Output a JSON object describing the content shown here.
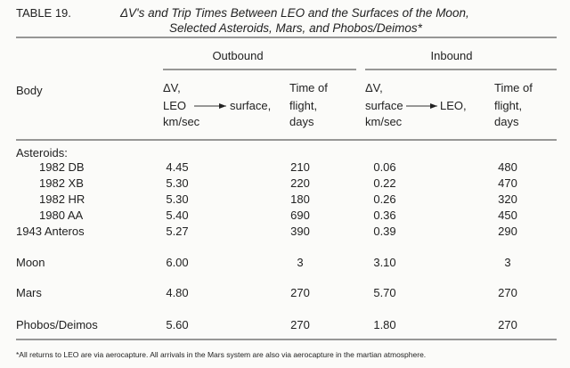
{
  "title": {
    "number": "TABLE 19.",
    "line1": "ΔV's and Trip Times Between LEO and the Surfaces of the Moon,",
    "line2": "Selected Asteroids, Mars, and Phobos/Deimos*"
  },
  "header": {
    "body": "Body",
    "outbound": {
      "label": "Outbound",
      "dv": [
        "ΔV,",
        "LEO",
        "km/sec"
      ],
      "dest": "surface,",
      "time": [
        "Time of",
        "flight,",
        "days"
      ]
    },
    "inbound": {
      "label": "Inbound",
      "dv": [
        "ΔV,",
        "surface",
        "km/sec"
      ],
      "dest": "LEO,",
      "time": [
        "Time of",
        "flight,",
        "days"
      ]
    }
  },
  "group": "Asteroids:",
  "rows": [
    [
      "1982 DB",
      "4.45",
      "210",
      "0.06",
      "480"
    ],
    [
      "1982 XB",
      "5.30",
      "220",
      "0.22",
      "470"
    ],
    [
      "1982 HR",
      "5.30",
      "180",
      "0.26",
      "320"
    ],
    [
      "1980 AA",
      "5.40",
      "690",
      "0.36",
      "450"
    ],
    [
      "1943  Anteros",
      "5.27",
      "390",
      "0.39",
      "290"
    ],
    [
      "Moon",
      "6.00",
      "3",
      "3.10",
      "3"
    ],
    [
      "Mars",
      "4.80",
      "270",
      "5.70",
      "270"
    ],
    [
      "Phobos/Deimos",
      "5.60",
      "270",
      "1.80",
      "270"
    ]
  ],
  "footnote": "*All returns to LEO are via aerocapture.  All arrivals in the Mars system are also via aerocapture in the martian atmosphere."
}
